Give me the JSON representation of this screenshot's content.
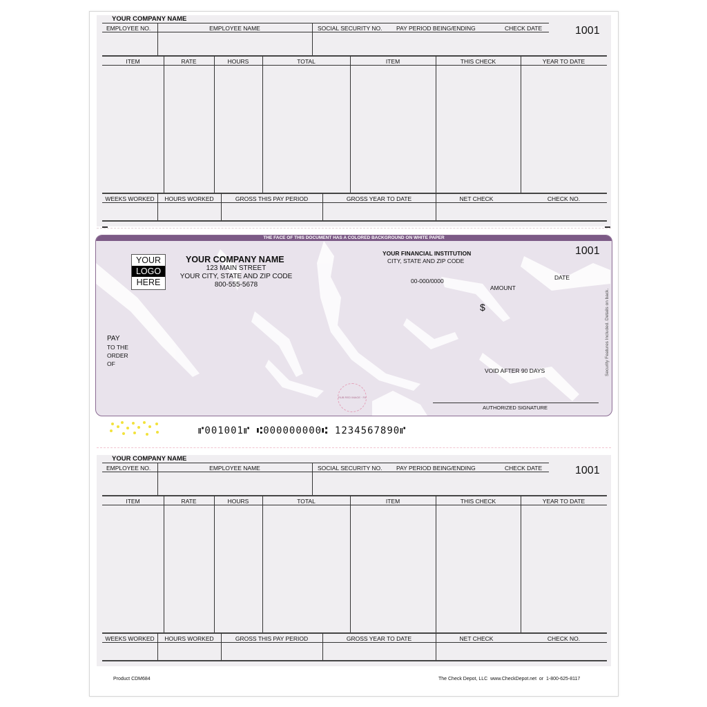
{
  "stub_top": {
    "company_name": "YOUR COMPANY NAME",
    "check_number": "1001",
    "header": [
      "EMPLOYEE NO.",
      "EMPLOYEE NAME",
      "SOCIAL SECURITY NO.",
      "PAY PERIOD BEING/ENDING",
      "CHECK DATE"
    ],
    "columns": [
      "ITEM",
      "RATE",
      "HOURS",
      "TOTAL",
      "ITEM",
      "THIS CHECK",
      "YEAR TO DATE"
    ],
    "summary": [
      "WEEKS WORKED",
      "HOURS WORKED",
      "GROSS THIS PAY PERIOD",
      "GROSS YEAR TO DATE",
      "NET CHECK",
      "CHECK NO."
    ]
  },
  "check": {
    "banner": "THE FACE OF THIS DOCUMENT HAS A COLORED BACKGROUND ON WHITE PAPER",
    "logo": [
      "YOUR",
      "LOGO",
      "HERE"
    ],
    "company_name": "YOUR COMPANY NAME",
    "address": "123 MAIN STREET",
    "city": "YOUR CITY, STATE AND ZIP CODE",
    "phone": "800-555-5678",
    "bank_name": "YOUR FINANCIAL INSTITUTION",
    "bank_city": "CITY, STATE AND ZIP CODE",
    "fraction": "00-000/0000",
    "check_number": "1001",
    "date_label": "DATE",
    "amount_label": "AMOUNT",
    "dollar": "$",
    "pay_label": "PAY",
    "order_label": [
      "TO THE",
      "ORDER",
      "OF"
    ],
    "void_text": "VOID AFTER 90 DAYS",
    "signature_label": "AUTHORIZED SIGNATURE",
    "security_text": "Security Features Included. Details on back.",
    "heat_seal": "RUB RED IMAGE · FADES WITH HEAT",
    "micr": "⑈001001⑈ ⑆000000000⑆ 1234567890⑈",
    "background_color": "#e9e3ec",
    "border_color": "#7c5a86"
  },
  "stub_bottom": {
    "company_name": "YOUR COMPANY NAME",
    "check_number": "1001",
    "header": [
      "EMPLOYEE NO.",
      "EMPLOYEE NAME",
      "SOCIAL SECURITY NO.",
      "PAY PERIOD BEING/ENDING",
      "CHECK DATE"
    ],
    "columns": [
      "ITEM",
      "RATE",
      "HOURS",
      "TOTAL",
      "ITEM",
      "THIS CHECK",
      "YEAR TO DATE"
    ],
    "summary": [
      "WEEKS WORKED",
      "HOURS WORKED",
      "GROSS THIS PAY PERIOD",
      "GROSS YEAR TO DATE",
      "NET CHECK",
      "CHECK NO."
    ]
  },
  "footer": {
    "product": "Product CDM684",
    "vendor": "The Check Depot, LLC  www.CheckDepot.net  or  1-800-625-8117"
  }
}
